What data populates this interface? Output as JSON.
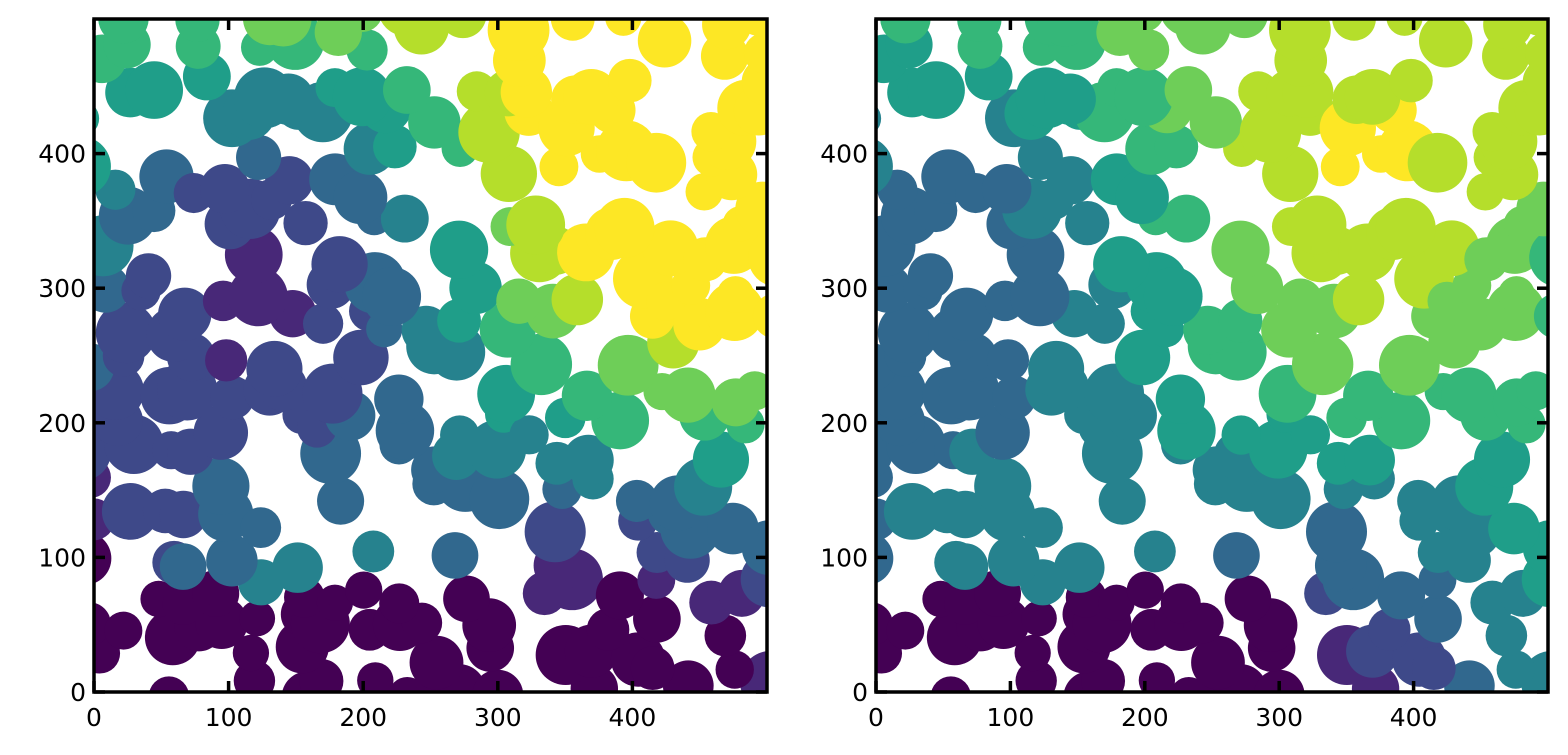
{
  "chart_data": [
    {
      "type": "image",
      "colormap": "viridis",
      "xlim": [
        0,
        500
      ],
      "ylim": [
        0,
        500
      ],
      "xticks": [
        0,
        100,
        200,
        300,
        400
      ],
      "yticks": [
        0,
        100,
        200,
        300,
        400
      ]
    },
    {
      "type": "image",
      "colormap": "viridis",
      "xlim": [
        0,
        500
      ],
      "ylim": [
        0,
        500
      ],
      "xticks": [
        0,
        100,
        200,
        300,
        400
      ],
      "yticks": [
        0,
        100,
        200,
        300,
        400
      ]
    }
  ]
}
